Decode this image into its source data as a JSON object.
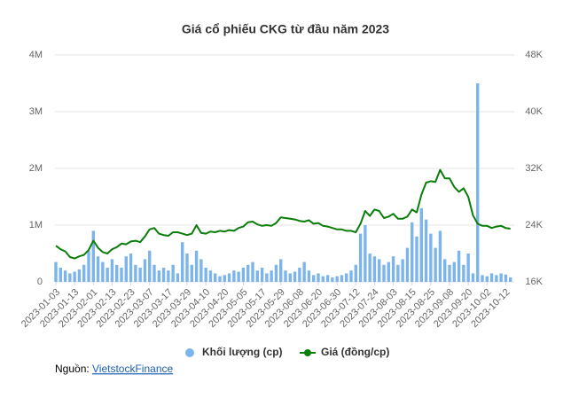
{
  "chart_data": {
    "type": "bar-line",
    "title": "Giá cổ phiếu CKG từ đầu năm 2023",
    "categories": [
      "2023-01-03",
      null,
      null,
      null,
      "2023-01-13",
      null,
      null,
      null,
      "2023-02-01",
      null,
      null,
      null,
      "2023-02-13",
      null,
      null,
      null,
      "2023-02-23",
      null,
      null,
      null,
      "2023-03-07",
      null,
      null,
      null,
      "2023-03-17",
      null,
      null,
      null,
      "2023-03-29",
      null,
      null,
      null,
      "2023-04-10",
      null,
      null,
      null,
      "2023-04-20",
      null,
      null,
      null,
      "2023-05-05",
      null,
      null,
      null,
      "2023-05-17",
      null,
      null,
      null,
      "2023-05-29",
      null,
      null,
      null,
      "2023-06-08",
      null,
      null,
      null,
      "2023-06-20",
      null,
      null,
      null,
      "2023-06-30",
      null,
      null,
      null,
      "2023-07-12",
      null,
      null,
      null,
      "2023-07-24",
      null,
      null,
      null,
      "2023-08-03",
      null,
      null,
      null,
      "2023-08-15",
      null,
      null,
      null,
      "2023-08-25",
      null,
      null,
      null,
      "2023-09-08",
      null,
      null,
      null,
      "2023-09-20",
      null,
      null,
      null,
      "2023-10-02",
      null,
      null,
      null,
      "2023-10-12",
      null
    ],
    "series": [
      {
        "name": "Khối lượng (cp)",
        "type": "bar",
        "axis": "y",
        "color": "#7cb5ec",
        "values": [
          350000,
          250000,
          200000,
          150000,
          180000,
          220000,
          300000,
          550000,
          900000,
          450000,
          350000,
          250000,
          400000,
          300000,
          250000,
          450000,
          500000,
          300000,
          250000,
          400000,
          550000,
          300000,
          200000,
          250000,
          200000,
          300000,
          150000,
          700000,
          500000,
          300000,
          550000,
          400000,
          250000,
          200000,
          150000,
          100000,
          120000,
          150000,
          200000,
          180000,
          250000,
          300000,
          350000,
          200000,
          250000,
          150000,
          200000,
          300000,
          400000,
          200000,
          150000,
          180000,
          250000,
          350000,
          200000,
          120000,
          150000,
          100000,
          120000,
          80000,
          100000,
          120000,
          150000,
          200000,
          300000,
          850000,
          1000000,
          500000,
          450000,
          400000,
          300000,
          350000,
          450000,
          300000,
          400000,
          600000,
          1050000,
          800000,
          1300000,
          1100000,
          850000,
          600000,
          900000,
          400000,
          300000,
          350000,
          550000,
          300000,
          500000,
          150000,
          3500000,
          120000,
          100000,
          150000,
          120000,
          150000,
          130000,
          80000
        ]
      },
      {
        "name": "Giá (đồng/cp)",
        "type": "line",
        "axis": "y2",
        "color": "#0a7d0a",
        "values": [
          21100,
          20600,
          20300,
          19500,
          19300,
          19600,
          19800,
          20500,
          21800,
          20800,
          20200,
          20000,
          20600,
          20900,
          21400,
          21300,
          21700,
          21800,
          21600,
          22400,
          23400,
          23600,
          22800,
          22600,
          22500,
          23000,
          23000,
          22800,
          22600,
          22800,
          24000,
          22900,
          22800,
          23100,
          23000,
          23200,
          23100,
          23300,
          23200,
          23600,
          23800,
          24400,
          24500,
          24100,
          23900,
          24000,
          23900,
          24300,
          25100,
          25000,
          24900,
          24800,
          24600,
          24500,
          24700,
          24200,
          24300,
          23900,
          23800,
          23600,
          23400,
          23400,
          23200,
          23200,
          23000,
          24200,
          26000,
          25300,
          26200,
          26000,
          25000,
          25200,
          25600,
          24900,
          24900,
          25200,
          26200,
          25800,
          28300,
          30000,
          30200,
          30100,
          31800,
          30600,
          30600,
          29400,
          28700,
          29200,
          28000,
          25400,
          24200,
          23900,
          23900,
          23600,
          23800,
          23900,
          23600,
          23500
        ]
      }
    ],
    "ylim": [
      0,
      4000000
    ],
    "yticks": [
      0,
      {
        "value": 1000000,
        "label": "1M"
      },
      {
        "value": 2000000,
        "label": "2M"
      },
      {
        "value": 3000000,
        "label": "3M"
      },
      {
        "value": 4000000,
        "label": "4M"
      }
    ],
    "y2lim": [
      16000,
      48000
    ],
    "y2ticks": [
      {
        "value": 16000,
        "label": "16K"
      },
      {
        "value": 24000,
        "label": "24K"
      },
      {
        "value": 32000,
        "label": "32K"
      },
      {
        "value": 40000,
        "label": "40K"
      },
      {
        "value": 48000,
        "label": "48K"
      }
    ],
    "grid": true,
    "legend": "bottom",
    "source_label": "Nguồn:",
    "source_link": "VietstockFinance"
  }
}
